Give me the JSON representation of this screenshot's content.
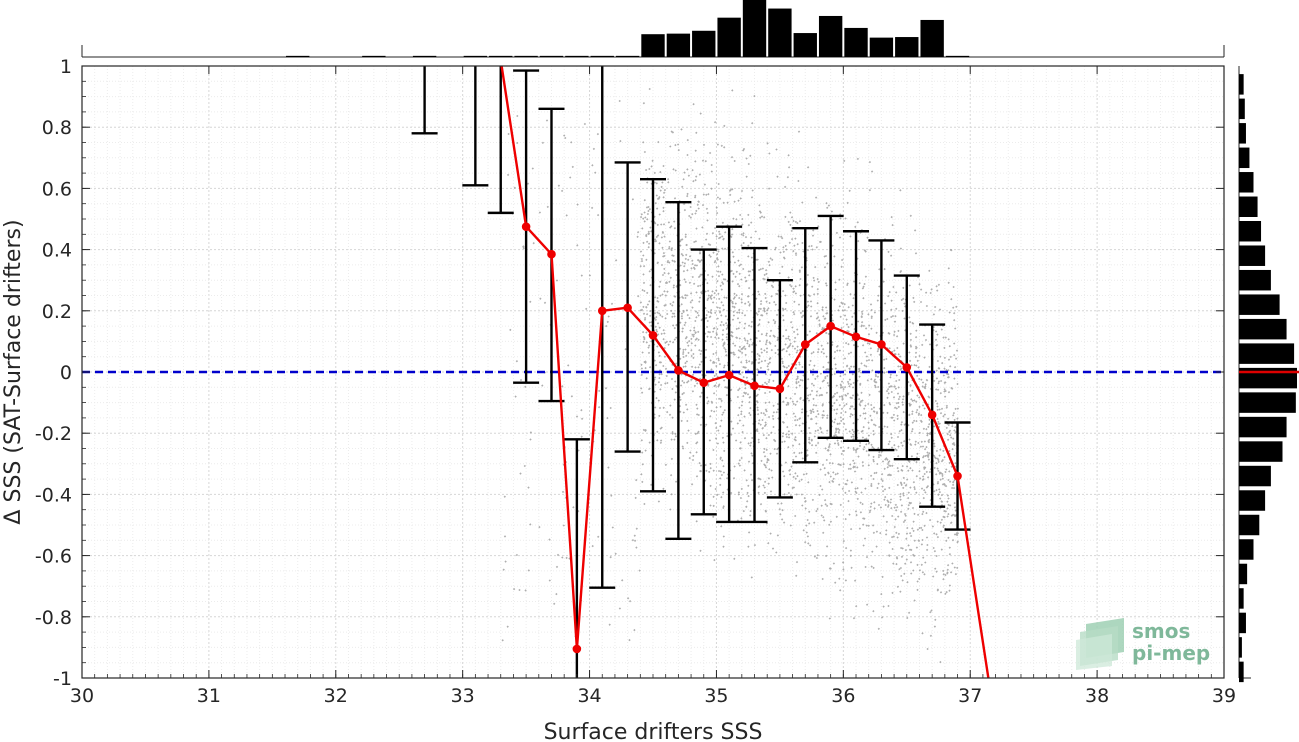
{
  "chart_data": {
    "type": "scatter",
    "xlabel": "Surface drifters SSS",
    "ylabel": "Δ SSS (SAT-Surface drifters)",
    "xlim": [
      30,
      39
    ],
    "ylim": [
      -1,
      1
    ],
    "x_ticks": [
      "30",
      "31",
      "32",
      "33",
      "34",
      "35",
      "36",
      "37",
      "38",
      "39"
    ],
    "y_ticks": [
      "-1",
      "-0.8",
      "-0.6",
      "-0.4",
      "-0.2",
      "0",
      "0.2",
      "0.4",
      "0.6",
      "0.8",
      "1"
    ],
    "grid": true,
    "zero_line": {
      "y": 0,
      "color": "#0000cc",
      "style": "dashed"
    },
    "mean_curve": {
      "color": "#ee0000",
      "points": [
        {
          "x": 33.3,
          "y": 1.02
        },
        {
          "x": 33.5,
          "y": 0.475
        },
        {
          "x": 33.7,
          "y": 0.385
        },
        {
          "x": 33.9,
          "y": -0.905
        },
        {
          "x": 34.1,
          "y": 0.2
        },
        {
          "x": 34.3,
          "y": 0.21
        },
        {
          "x": 34.5,
          "y": 0.12
        },
        {
          "x": 34.7,
          "y": 0.005
        },
        {
          "x": 34.9,
          "y": -0.035
        },
        {
          "x": 35.1,
          "y": -0.01
        },
        {
          "x": 35.3,
          "y": -0.045
        },
        {
          "x": 35.5,
          "y": -0.055
        },
        {
          "x": 35.7,
          "y": 0.09
        },
        {
          "x": 35.9,
          "y": 0.15
        },
        {
          "x": 36.1,
          "y": 0.115
        },
        {
          "x": 36.3,
          "y": 0.09
        },
        {
          "x": 36.5,
          "y": 0.015
        },
        {
          "x": 36.7,
          "y": -0.14
        },
        {
          "x": 36.9,
          "y": -0.34
        },
        {
          "x": 37.15,
          "y": -1.02
        }
      ]
    },
    "error_bars": [
      {
        "x": 32.7,
        "low": 0.78,
        "high": 1.05
      },
      {
        "x": 33.1,
        "low": 0.61,
        "high": 1.05
      },
      {
        "x": 33.3,
        "low": 0.52,
        "high": 1.05
      },
      {
        "x": 33.5,
        "low": -0.035,
        "high": 0.985
      },
      {
        "x": 33.7,
        "low": -0.095,
        "high": 0.86
      },
      {
        "x": 33.9,
        "low": -1.05,
        "high": -0.22
      },
      {
        "x": 34.1,
        "low": -0.705,
        "high": 1.05
      },
      {
        "x": 34.3,
        "low": -0.26,
        "high": 0.685
      },
      {
        "x": 34.5,
        "low": -0.39,
        "high": 0.63
      },
      {
        "x": 34.7,
        "low": -0.545,
        "high": 0.555
      },
      {
        "x": 34.9,
        "low": -0.465,
        "high": 0.4
      },
      {
        "x": 35.1,
        "low": -0.49,
        "high": 0.475
      },
      {
        "x": 35.3,
        "low": -0.49,
        "high": 0.405
      },
      {
        "x": 35.5,
        "low": -0.41,
        "high": 0.3
      },
      {
        "x": 35.7,
        "low": -0.295,
        "high": 0.47
      },
      {
        "x": 35.9,
        "low": -0.215,
        "high": 0.51
      },
      {
        "x": 36.1,
        "low": -0.225,
        "high": 0.46
      },
      {
        "x": 36.3,
        "low": -0.255,
        "high": 0.43
      },
      {
        "x": 36.5,
        "low": -0.285,
        "high": 0.315
      },
      {
        "x": 36.7,
        "low": -0.44,
        "high": 0.155
      },
      {
        "x": 36.9,
        "low": -0.515,
        "high": -0.165
      }
    ],
    "scatter_color": "#a0a0a0",
    "top_histogram": {
      "bin_centers": [
        30.1,
        30.3,
        30.5,
        30.7,
        30.9,
        31.1,
        31.3,
        31.5,
        31.7,
        31.9,
        32.1,
        32.3,
        32.5,
        32.7,
        32.9,
        33.1,
        33.3,
        33.5,
        33.7,
        33.9,
        34.1,
        34.3,
        34.5,
        34.7,
        34.9,
        35.1,
        35.3,
        35.5,
        35.7,
        35.9,
        36.1,
        36.3,
        36.5,
        36.7,
        36.9,
        37.1,
        37.3,
        37.5,
        37.7,
        37.9,
        38.1,
        38.3,
        38.5,
        38.7,
        38.9
      ],
      "relative_counts": [
        0,
        0,
        0,
        0,
        0,
        0,
        0,
        0,
        0.02,
        0,
        0,
        0.02,
        0,
        0.02,
        0,
        0.02,
        0.02,
        0.02,
        0.02,
        0.02,
        0.02,
        0.02,
        0.4,
        0.41,
        0.46,
        0.69,
        1.0,
        0.85,
        0.42,
        0.72,
        0.51,
        0.34,
        0.35,
        0.65,
        0.02,
        0,
        0,
        0,
        0,
        0,
        0,
        0,
        0,
        0,
        0
      ]
    },
    "right_histogram": {
      "bin_centers": [
        -0.98,
        -0.9,
        -0.82,
        -0.74,
        -0.66,
        -0.58,
        -0.5,
        -0.42,
        -0.34,
        -0.26,
        -0.18,
        -0.1,
        -0.02,
        0.06,
        0.14,
        0.22,
        0.3,
        0.38,
        0.46,
        0.54,
        0.62,
        0.7,
        0.78,
        0.86,
        0.94
      ],
      "relative_counts": [
        0.08,
        0.05,
        0.12,
        0.08,
        0.14,
        0.25,
        0.35,
        0.45,
        0.55,
        0.75,
        0.82,
        0.98,
        1.0,
        0.95,
        0.82,
        0.7,
        0.55,
        0.45,
        0.38,
        0.32,
        0.25,
        0.18,
        0.12,
        0.1,
        0.08
      ],
      "median_line_color": "#dd0000"
    }
  },
  "logo": {
    "line1": "smos",
    "line2": "pi-mep"
  }
}
